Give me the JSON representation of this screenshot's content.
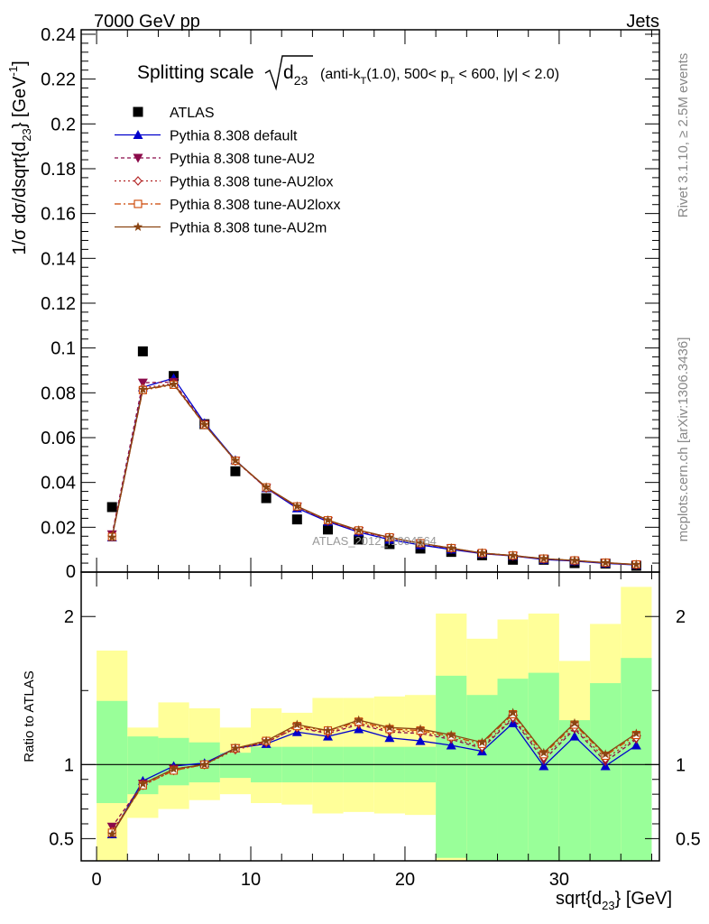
{
  "header": {
    "left": "7000 GeV pp",
    "right": "Jets"
  },
  "side_labels": {
    "rivet": "Rivet 3.1.10, ≥ 2.5M events",
    "mcplots": "mcplots.cern.ch [arXiv:1306.3436]"
  },
  "watermark": "ATLAS_2012_I1094564",
  "colors": {
    "ATLAS": "#000000",
    "default": "#0000cc",
    "AU2": "#8b0a4a",
    "AU2lox": "#b22222",
    "AU2loxx": "#cc4400",
    "AU2m": "#8b4513",
    "band_inner": "#99ff99",
    "band_outer": "#ffff99"
  },
  "chart_data": [
    {
      "type": "line",
      "title": "Splitting scale √d23 (anti-kT(1.0), 500< pT < 600, |y| < 2.0)",
      "title_parts": {
        "main": "Splitting scale",
        "var": "d",
        "var_sub": "23",
        "cond_a": "(anti-k",
        "cond_a_sub": "T",
        "cond_b": "(1.0), 500< p",
        "cond_b_sub": "T",
        "cond_c": " < 600, |y| < 2.0)"
      },
      "ylabel": "1/σ dσ/dsqrt{d23} [GeV⁻¹]",
      "ylabel_parts": {
        "a": "1/σ dσ/dsqrt{d",
        "a_sub": "23",
        "b": "} [GeV",
        "b_sup": "-1",
        "c": "]"
      },
      "xlim": [
        -1,
        36.5
      ],
      "ylim": [
        0,
        0.242
      ],
      "yticks": [
        0.02,
        0.04,
        0.06,
        0.08,
        0.1,
        0.12,
        0.14,
        0.16,
        0.18,
        0.2,
        0.22,
        0.24
      ],
      "ytick_labels": [
        "0.02",
        "0.04",
        "0.06",
        "0.08",
        "0.1",
        "0.12",
        "0.14",
        "0.16",
        "0.18",
        "0.2",
        "0.22",
        "0.24"
      ],
      "y_zero_label": "0",
      "legend_position": "top-left",
      "x": [
        1,
        3,
        5,
        7,
        9,
        11,
        13,
        15,
        17,
        19,
        21,
        23,
        25,
        27,
        29,
        31,
        33,
        35
      ],
      "series": [
        {
          "name": "ATLAS",
          "key": "ATLAS",
          "values": [
            0.029,
            0.0985,
            0.0875,
            0.066,
            0.045,
            0.033,
            0.0235,
            0.019,
            0.0145,
            0.0125,
            0.0105,
            0.009,
            0.0075,
            0.0055,
            0.0055,
            0.004,
            0.0038,
            0.0028
          ]
        },
        {
          "name": "Pythia 8.308 default",
          "key": "default",
          "values": [
            0.0155,
            0.0825,
            0.0865,
            0.0665,
            0.05,
            0.0375,
            0.0285,
            0.0225,
            0.0178,
            0.0145,
            0.0121,
            0.0101,
            0.0082,
            0.0072,
            0.0056,
            0.0049,
            0.0039,
            0.0032
          ]
        },
        {
          "name": "Pythia 8.308 tune-AU2",
          "key": "AU2",
          "values": [
            0.0168,
            0.0845,
            0.0848,
            0.066,
            0.0497,
            0.0375,
            0.0292,
            0.0228,
            0.0183,
            0.0152,
            0.0127,
            0.0105,
            0.0083,
            0.0072,
            0.0059,
            0.0051,
            0.0041,
            0.0033
          ]
        },
        {
          "name": "Pythia 8.308 tune-AU2lox",
          "key": "AU2lox",
          "values": [
            0.016,
            0.0822,
            0.0842,
            0.0658,
            0.0496,
            0.0376,
            0.0292,
            0.0229,
            0.0184,
            0.0153,
            0.0128,
            0.0106,
            0.0084,
            0.0073,
            0.0059,
            0.0051,
            0.0041,
            0.0033
          ]
        },
        {
          "name": "Pythia 8.308 tune-AU2loxx",
          "key": "AU2loxx",
          "values": [
            0.0157,
            0.0812,
            0.0836,
            0.0657,
            0.0497,
            0.0378,
            0.0293,
            0.0231,
            0.0186,
            0.0155,
            0.0129,
            0.0107,
            0.0085,
            0.0074,
            0.006,
            0.0052,
            0.0042,
            0.0034
          ]
        },
        {
          "name": "Pythia 8.308 tune-AU2m",
          "key": "AU2m",
          "values": [
            0.0155,
            0.0815,
            0.0838,
            0.0658,
            0.0498,
            0.0379,
            0.0294,
            0.0232,
            0.0187,
            0.0155,
            0.0129,
            0.0107,
            0.0085,
            0.0074,
            0.006,
            0.0052,
            0.0042,
            0.0034
          ]
        }
      ]
    },
    {
      "type": "line",
      "ylabel": "Ratio to ATLAS",
      "xlabel": "sqrt{d23} [GeV]",
      "xlabel_parts": {
        "a": "sqrt{d",
        "a_sub": "23",
        "b": "} [GeV]"
      },
      "xlim": [
        -1,
        36.5
      ],
      "ylim": [
        0.35,
        2.3
      ],
      "xticks": [
        0,
        10,
        20,
        30
      ],
      "xtick_labels": [
        "0",
        "10",
        "20",
        "30"
      ],
      "yticks": [
        0.5,
        1,
        2
      ],
      "ytick_labels": [
        "0.5",
        "1",
        "2"
      ],
      "bins": [
        [
          0,
          2
        ],
        [
          2,
          4
        ],
        [
          4,
          6
        ],
        [
          6,
          8
        ],
        [
          8,
          10
        ],
        [
          10,
          12
        ],
        [
          12,
          14
        ],
        [
          14,
          16
        ],
        [
          16,
          18
        ],
        [
          18,
          20
        ],
        [
          20,
          22
        ],
        [
          22,
          24
        ],
        [
          24,
          26
        ],
        [
          26,
          28
        ],
        [
          28,
          30
        ],
        [
          30,
          32
        ],
        [
          32,
          34
        ],
        [
          34,
          36
        ]
      ],
      "band_inner": [
        [
          0.74,
          1.43
        ],
        [
          0.8,
          1.19
        ],
        [
          0.86,
          1.18
        ],
        [
          0.88,
          1.15
        ],
        [
          0.91,
          1.08
        ],
        [
          0.88,
          1.12
        ],
        [
          0.88,
          1.12
        ],
        [
          0.88,
          1.12
        ],
        [
          0.88,
          1.12
        ],
        [
          0.88,
          1.12
        ],
        [
          0.88,
          1.12
        ],
        [
          0.37,
          1.6
        ],
        [
          0.35,
          1.47
        ],
        [
          0.35,
          1.58
        ],
        [
          0.35,
          1.62
        ],
        [
          0.35,
          1.3
        ],
        [
          0.35,
          1.55
        ],
        [
          0.35,
          1.72
        ]
      ],
      "band_outer": [
        [
          0.35,
          1.77
        ],
        [
          0.64,
          1.25
        ],
        [
          0.7,
          1.42
        ],
        [
          0.76,
          1.38
        ],
        [
          0.8,
          1.25
        ],
        [
          0.74,
          1.38
        ],
        [
          0.73,
          1.35
        ],
        [
          0.67,
          1.45
        ],
        [
          0.68,
          1.45
        ],
        [
          0.67,
          1.46
        ],
        [
          0.66,
          1.47
        ],
        [
          0.35,
          2.02
        ],
        [
          0.35,
          1.85
        ],
        [
          0.35,
          1.98
        ],
        [
          0.35,
          2.02
        ],
        [
          0.35,
          1.7
        ],
        [
          0.35,
          1.95
        ],
        [
          0.35,
          2.2
        ]
      ],
      "x": [
        1,
        3,
        5,
        7,
        9,
        11,
        13,
        15,
        17,
        19,
        21,
        23,
        25,
        27,
        29,
        31,
        33,
        35
      ],
      "series": [
        {
          "name": "Pythia 8.308 default",
          "key": "default",
          "values": [
            0.53,
            0.89,
            0.99,
            1.01,
            1.11,
            1.14,
            1.22,
            1.19,
            1.24,
            1.18,
            1.16,
            1.13,
            1.09,
            1.28,
            0.99,
            1.19,
            0.99,
            1.13
          ]
        },
        {
          "name": "Pythia 8.308 tune-AU2",
          "key": "AU2",
          "values": [
            0.58,
            0.87,
            0.97,
            1.0,
            1.11,
            1.15,
            1.25,
            1.21,
            1.27,
            1.22,
            1.21,
            1.17,
            1.11,
            1.31,
            1.03,
            1.24,
            1.02,
            1.17
          ]
        },
        {
          "name": "Pythia 8.308 tune-AU2lox",
          "key": "AU2lox",
          "values": [
            0.55,
            0.86,
            0.96,
            1.0,
            1.1,
            1.15,
            1.25,
            1.22,
            1.28,
            1.23,
            1.22,
            1.18,
            1.12,
            1.32,
            1.05,
            1.25,
            1.04,
            1.18
          ]
        },
        {
          "name": "Pythia 8.308 tune-AU2loxx",
          "key": "AU2loxx",
          "values": [
            0.54,
            0.86,
            0.96,
            1.0,
            1.11,
            1.16,
            1.26,
            1.23,
            1.29,
            1.24,
            1.23,
            1.19,
            1.14,
            1.34,
            1.07,
            1.27,
            1.06,
            1.2
          ]
        },
        {
          "name": "Pythia 8.308 tune-AU2m",
          "key": "AU2m",
          "values": [
            0.53,
            0.87,
            0.97,
            1.0,
            1.11,
            1.16,
            1.27,
            1.23,
            1.3,
            1.25,
            1.24,
            1.2,
            1.15,
            1.35,
            1.08,
            1.28,
            1.07,
            1.21
          ]
        }
      ]
    }
  ]
}
